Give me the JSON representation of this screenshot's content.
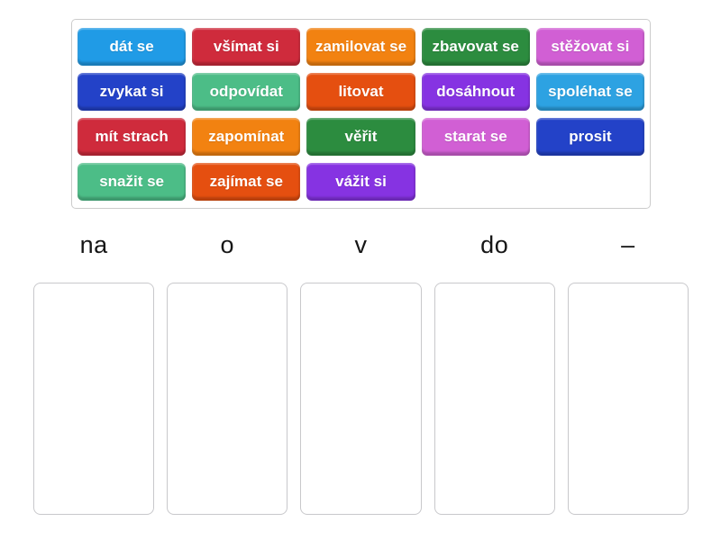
{
  "word_bank": {
    "palette": {
      "azure": "#209be6",
      "azure2": "#2da2e2",
      "crimson": "#cf2b3c",
      "orange": "#f28211",
      "forest": "#2c8c3f",
      "orchid": "#d15fd4",
      "royal": "#2342c8",
      "seagreen": "#4cbd87",
      "orangered": "#e54f10",
      "violet": "#8633e2"
    },
    "chips": [
      {
        "label": "dát se",
        "color_key": "azure"
      },
      {
        "label": "všímat si",
        "color_key": "crimson"
      },
      {
        "label": "zamilovat se",
        "color_key": "orange"
      },
      {
        "label": "zbavovat se",
        "color_key": "forest"
      },
      {
        "label": "stěžovat si",
        "color_key": "orchid"
      },
      {
        "label": "zvykat si",
        "color_key": "royal"
      },
      {
        "label": "odpovídat",
        "color_key": "seagreen"
      },
      {
        "label": "litovat",
        "color_key": "orangered"
      },
      {
        "label": "dosáhnout",
        "color_key": "violet"
      },
      {
        "label": "spoléhat se",
        "color_key": "azure2"
      },
      {
        "label": "mít strach",
        "color_key": "crimson"
      },
      {
        "label": "zapomínat",
        "color_key": "orange"
      },
      {
        "label": "věřit",
        "color_key": "forest"
      },
      {
        "label": "starat se",
        "color_key": "orchid"
      },
      {
        "label": "prosit",
        "color_key": "royal"
      },
      {
        "label": "snažit se",
        "color_key": "seagreen"
      },
      {
        "label": "zajímat se",
        "color_key": "orangered"
      },
      {
        "label": "vážit si",
        "color_key": "violet"
      }
    ]
  },
  "groups": [
    {
      "label": "na"
    },
    {
      "label": "o"
    },
    {
      "label": "v"
    },
    {
      "label": "do"
    },
    {
      "label": "–"
    }
  ]
}
